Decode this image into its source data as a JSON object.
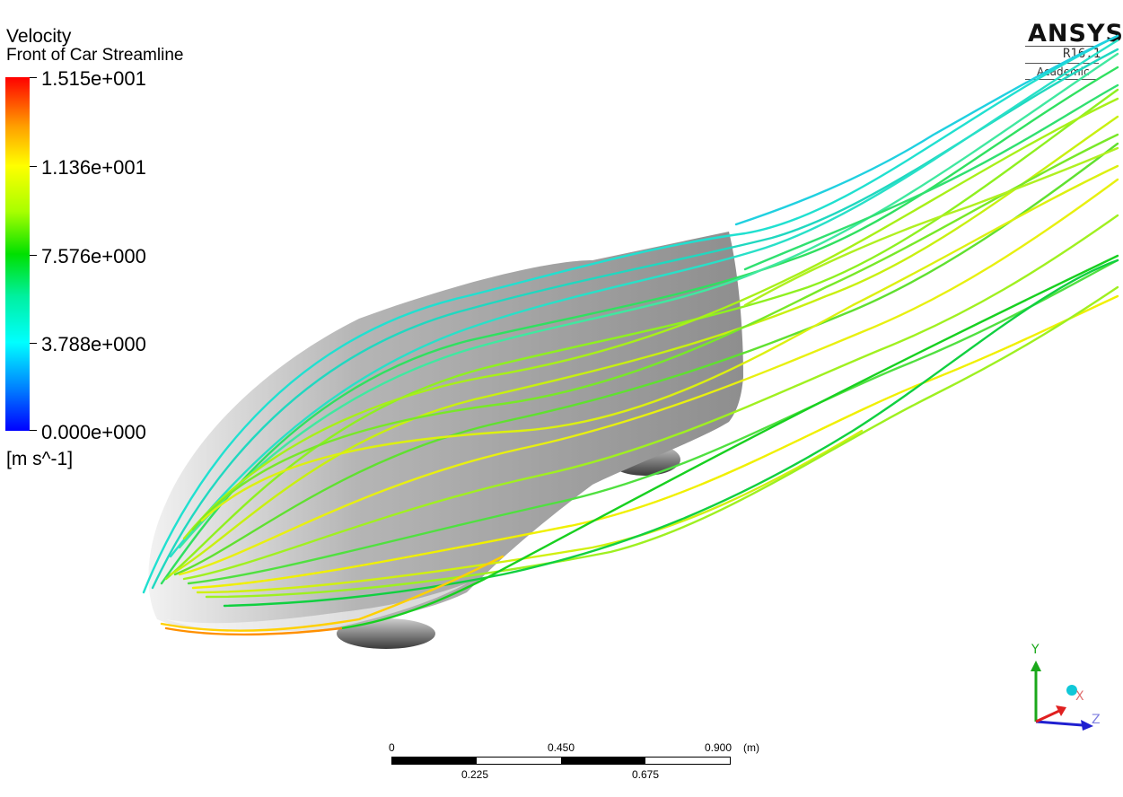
{
  "legend": {
    "title": "Velocity",
    "subtitle": "Front of Car Streamline",
    "ticks": [
      "1.515e+001",
      "1.136e+001",
      "7.576e+000",
      "3.788e+000",
      "0.000e+000"
    ],
    "units": "[m s^-1]"
  },
  "logo": {
    "name": "ANSYS",
    "release": "R16.1",
    "edition": "Academic"
  },
  "scale_bar": {
    "top_labels": [
      "0",
      "0.450",
      "0.900",
      "(m)"
    ],
    "bottom_labels": [
      "0.225",
      "0.675"
    ]
  },
  "axes": {
    "y": "Y",
    "x": "X",
    "z": "Z",
    "y_color": "#1aa81a",
    "x_color": "#e02020",
    "z_color": "#2020d0"
  },
  "colors": {
    "background": "#ffffff",
    "car_body": "#a8a8a8"
  }
}
